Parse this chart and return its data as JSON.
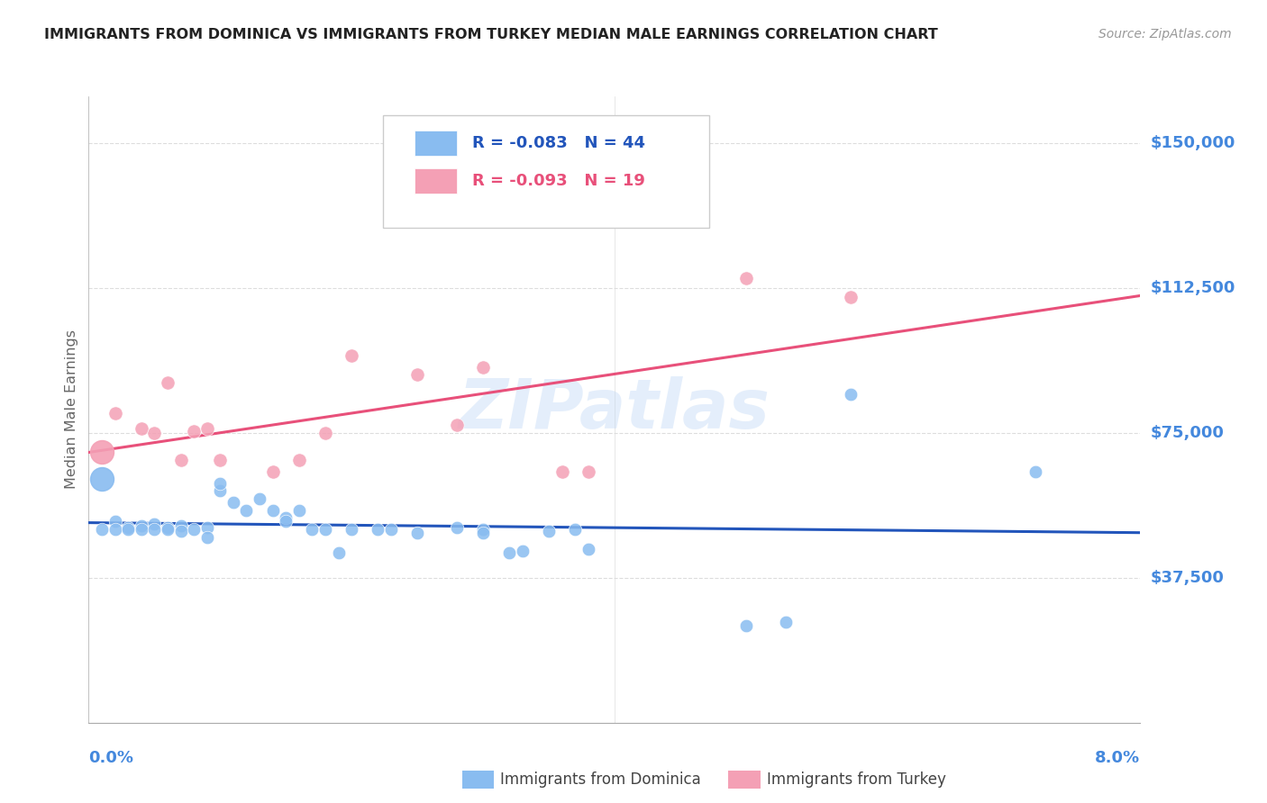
{
  "title": "IMMIGRANTS FROM DOMINICA VS IMMIGRANTS FROM TURKEY MEDIAN MALE EARNINGS CORRELATION CHART",
  "source": "Source: ZipAtlas.com",
  "ylabel": "Median Male Earnings",
  "ytick_labels": [
    "$37,500",
    "$75,000",
    "$112,500",
    "$150,000"
  ],
  "ytick_values": [
    37500,
    75000,
    112500,
    150000
  ],
  "ymin": 0,
  "ymax": 162000,
  "xmin": 0.0,
  "xmax": 0.08,
  "watermark": "ZIPatlas",
  "legend1_r": "R = -0.083",
  "legend1_n": "N = 44",
  "legend2_r": "R = -0.093",
  "legend2_n": "N = 19",
  "legend1_label": "Immigrants from Dominica",
  "legend2_label": "Immigrants from Turkey",
  "blue_color": "#89BCF0",
  "pink_color": "#F4A0B5",
  "blue_line_color": "#2255BB",
  "pink_line_color": "#E8507A",
  "title_color": "#222222",
  "axis_label_color": "#4488DD",
  "grid_color": "#DDDDDD",
  "blue_scatter": [
    [
      0.001,
      50000
    ],
    [
      0.002,
      52000
    ],
    [
      0.002,
      50000
    ],
    [
      0.003,
      50500
    ],
    [
      0.003,
      50000
    ],
    [
      0.004,
      51000
    ],
    [
      0.004,
      50000
    ],
    [
      0.005,
      51500
    ],
    [
      0.005,
      50000
    ],
    [
      0.006,
      50500
    ],
    [
      0.006,
      50000
    ],
    [
      0.007,
      51000
    ],
    [
      0.007,
      49500
    ],
    [
      0.008,
      50000
    ],
    [
      0.009,
      50500
    ],
    [
      0.009,
      48000
    ],
    [
      0.01,
      60000
    ],
    [
      0.01,
      62000
    ],
    [
      0.011,
      57000
    ],
    [
      0.012,
      55000
    ],
    [
      0.013,
      58000
    ],
    [
      0.014,
      55000
    ],
    [
      0.015,
      53000
    ],
    [
      0.015,
      52000
    ],
    [
      0.016,
      55000
    ],
    [
      0.017,
      50000
    ],
    [
      0.018,
      50000
    ],
    [
      0.019,
      44000
    ],
    [
      0.02,
      50000
    ],
    [
      0.022,
      50000
    ],
    [
      0.023,
      50000
    ],
    [
      0.025,
      49000
    ],
    [
      0.028,
      50500
    ],
    [
      0.03,
      50000
    ],
    [
      0.03,
      49000
    ],
    [
      0.032,
      44000
    ],
    [
      0.033,
      44500
    ],
    [
      0.035,
      49500
    ],
    [
      0.037,
      50000
    ],
    [
      0.038,
      45000
    ],
    [
      0.05,
      25000
    ],
    [
      0.053,
      26000
    ],
    [
      0.058,
      85000
    ],
    [
      0.072,
      65000
    ]
  ],
  "pink_scatter": [
    [
      0.002,
      80000
    ],
    [
      0.004,
      76000
    ],
    [
      0.005,
      75000
    ],
    [
      0.006,
      88000
    ],
    [
      0.007,
      68000
    ],
    [
      0.008,
      75500
    ],
    [
      0.009,
      76000
    ],
    [
      0.01,
      68000
    ],
    [
      0.014,
      65000
    ],
    [
      0.016,
      68000
    ],
    [
      0.018,
      75000
    ],
    [
      0.02,
      95000
    ],
    [
      0.025,
      90000
    ],
    [
      0.028,
      77000
    ],
    [
      0.03,
      92000
    ],
    [
      0.036,
      65000
    ],
    [
      0.038,
      65000
    ],
    [
      0.05,
      115000
    ],
    [
      0.058,
      110000
    ]
  ],
  "blue_large_dot": [
    0.001,
    63000
  ],
  "blue_large_dot_size": 350,
  "pink_large_dot": [
    0.001,
    70000
  ],
  "pink_large_dot_size": 350
}
